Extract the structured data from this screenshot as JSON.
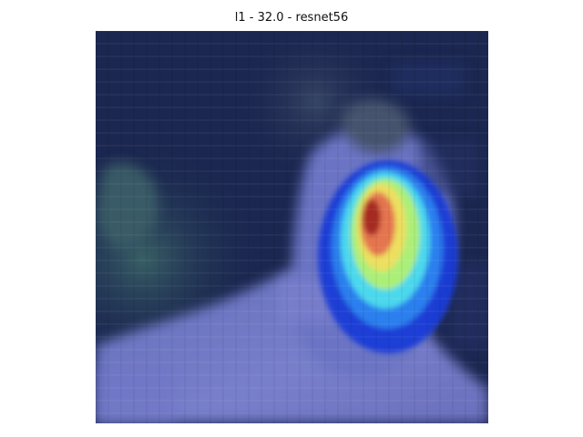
{
  "figure": {
    "title": "l1 - 32.0 - resnet56",
    "overlay_colormap": "jet",
    "base_tones": [
      "#1b2750",
      "#27325f",
      "#223f52",
      "#344f5e",
      "#4d5c9d",
      "#6b74c4",
      "#7a7fcb"
    ],
    "heat_colors": [
      "#1839d8",
      "#2c86f0",
      "#4fe2ec",
      "#b7f26a",
      "#f2dd5c",
      "#e36b4f",
      "#a32822"
    ]
  }
}
